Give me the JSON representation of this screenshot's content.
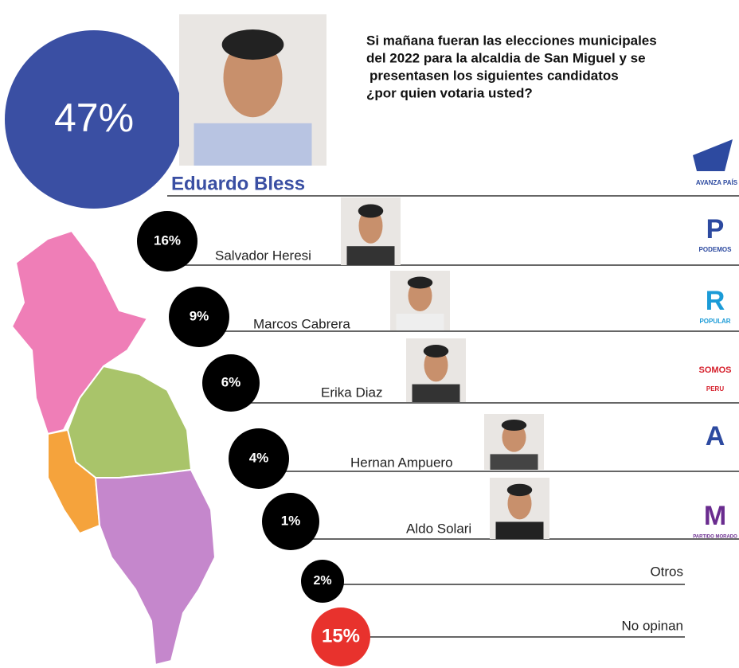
{
  "question": [
    "Si mañana fueran las elecciones municipales",
    "del 2022 para la alcaldia de San Miguel y se",
    "presentasen los siguientes candidatos",
    "¿por quien votaria usted?"
  ],
  "leader": {
    "percent": "47%",
    "name": "Eduardo Bless",
    "logo": {
      "text": "AVANZA PAÍS"
    }
  },
  "candidates": [
    {
      "percent": "16%",
      "name": "Salvador Heresi",
      "logo": {
        "mark": "P",
        "text": "PODEMOS"
      }
    },
    {
      "percent": "9%",
      "name": "Marcos Cabrera",
      "logo": {
        "mark": "R",
        "text": "POPULAR"
      }
    },
    {
      "percent": "6%",
      "name": "Erika Diaz",
      "logo": {
        "mark": "SOMOS",
        "text": "PERU"
      }
    },
    {
      "percent": "4%",
      "name": "Hernan Ampuero",
      "logo": {
        "mark": "A"
      }
    },
    {
      "percent": "1%",
      "name": "Aldo Solari",
      "logo": {
        "mark": "M",
        "text": "PARTIDO MORADO"
      }
    }
  ],
  "others": [
    {
      "percent": "2%",
      "label": "Otros"
    },
    {
      "percent": "15%",
      "label": "No opinan"
    }
  ]
}
